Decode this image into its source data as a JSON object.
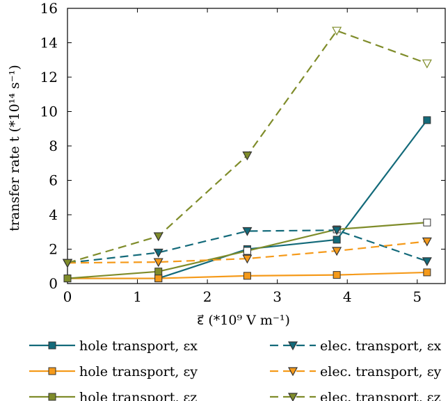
{
  "chart_data": {
    "type": "line",
    "xlabel": "ε⃗ (*10⁹ V m⁻¹)",
    "ylabel": "transfer rate t (*10¹⁴ s⁻¹)",
    "xlim": [
      0,
      5.4
    ],
    "ylim": [
      0,
      16
    ],
    "xticks": [
      "0",
      "1",
      "2",
      "3",
      "4",
      "5"
    ],
    "yticks": [
      "0",
      "2",
      "4",
      "6",
      "8",
      "10",
      "12",
      "14",
      "16"
    ],
    "grid": false,
    "legend_position": "bottom",
    "series": [
      {
        "name": "hole transport, εx",
        "color": "#136a7a",
        "style": "solid",
        "marker": "square",
        "filled": true,
        "x": [
          0,
          1.3,
          2.57,
          3.85,
          5.14
        ],
        "y": [
          0.3,
          0.3,
          2.0,
          2.55,
          9.5
        ]
      },
      {
        "name": "hole transport, εy",
        "color": "#f59a1a",
        "style": "solid",
        "marker": "square",
        "filled": true,
        "x": [
          0,
          1.3,
          2.57,
          3.85,
          5.14
        ],
        "y": [
          0.3,
          0.3,
          0.45,
          0.5,
          0.65
        ]
      },
      {
        "name": "hole transport, εz",
        "color": "#7f8c2a",
        "style": "solid",
        "marker": "square",
        "filled": true,
        "x": [
          0,
          1.3,
          2.57,
          3.85,
          5.14
        ],
        "y": [
          0.3,
          0.7,
          1.9,
          3.15,
          3.55
        ]
      },
      {
        "name": "elec. transport, εx",
        "color": "#136a7a",
        "style": "dashed",
        "marker": "triangle-down",
        "filled": true,
        "x": [
          0,
          1.3,
          2.57,
          3.85,
          5.14
        ],
        "y": [
          1.2,
          1.8,
          3.05,
          3.1,
          1.3
        ]
      },
      {
        "name": "elec. transport, εy",
        "color": "#f59a1a",
        "style": "dashed",
        "marker": "triangle-down",
        "filled": true,
        "x": [
          0,
          1.3,
          2.57,
          3.85,
          5.14
        ],
        "y": [
          1.2,
          1.25,
          1.45,
          1.9,
          2.45
        ]
      },
      {
        "name": "elec. transport, εz",
        "color": "#7f8c2a",
        "style": "dashed",
        "marker": "triangle-down",
        "filled": true,
        "x": [
          0,
          1.3,
          2.57,
          3.85,
          5.14
        ],
        "y": [
          1.2,
          2.75,
          7.45,
          14.7,
          12.8
        ]
      }
    ],
    "hollow_markers": [
      {
        "series": 2,
        "index": 2
      },
      {
        "series": 2,
        "index": 3
      },
      {
        "series": 2,
        "index": 4
      },
      {
        "series": 5,
        "index": 3
      },
      {
        "series": 5,
        "index": 4
      }
    ]
  }
}
